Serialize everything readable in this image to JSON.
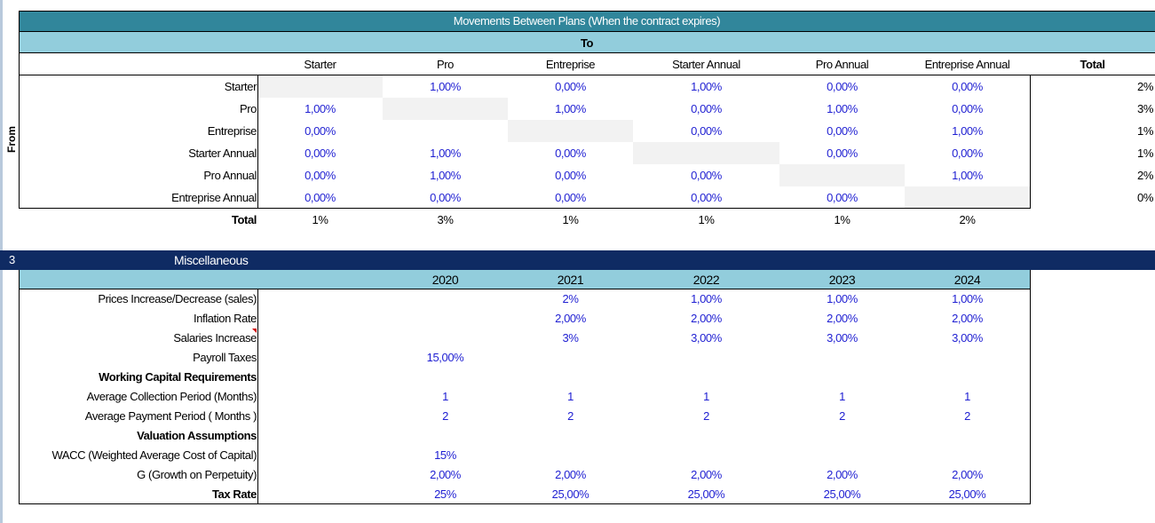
{
  "movements": {
    "title": "Movements Between Plans (When the contract expires)",
    "to_label": "To",
    "from_label": "From",
    "columns": [
      "Starter",
      "Pro",
      "Entreprise",
      "Starter Annual",
      "Pro Annual",
      "Entreprise Annual"
    ],
    "total_label": "Total",
    "rows": [
      {
        "label": "Starter",
        "values": [
          "",
          "1,00%",
          "0,00%",
          "1,00%",
          "0,00%",
          "0,00%"
        ],
        "total": "2%"
      },
      {
        "label": "Pro",
        "values": [
          "1,00%",
          "",
          "1,00%",
          "0,00%",
          "1,00%",
          "0,00%"
        ],
        "total": "3%"
      },
      {
        "label": "Entreprise",
        "values": [
          "0,00%",
          "",
          "",
          "0,00%",
          "0,00%",
          "1,00%"
        ],
        "total": "1%"
      },
      {
        "label": "Starter Annual",
        "values": [
          "0,00%",
          "1,00%",
          "0,00%",
          "",
          "0,00%",
          "0,00%"
        ],
        "total": "1%"
      },
      {
        "label": "Pro Annual",
        "values": [
          "0,00%",
          "1,00%",
          "0,00%",
          "0,00%",
          "",
          "1,00%"
        ],
        "total": "2%"
      },
      {
        "label": "Entreprise Annual",
        "values": [
          "0,00%",
          "0,00%",
          "0,00%",
          "0,00%",
          "0,00%",
          ""
        ],
        "total": "0%"
      }
    ],
    "column_totals": [
      "1%",
      "3%",
      "1%",
      "1%",
      "1%",
      "2%"
    ]
  },
  "misc": {
    "section_number": "3",
    "title": "Miscellaneous",
    "years": [
      "2020",
      "2021",
      "2022",
      "2023",
      "2024"
    ],
    "rows": [
      {
        "label": "Prices Increase/Decrease (sales)",
        "bold": false,
        "values": [
          "",
          "2%",
          "1,00%",
          "1,00%",
          "1,00%"
        ]
      },
      {
        "label": "Inflation Rate",
        "bold": false,
        "values": [
          "",
          "2,00%",
          "2,00%",
          "2,00%",
          "2,00%"
        ]
      },
      {
        "label": "Salaries Increase",
        "bold": false,
        "values": [
          "",
          "3%",
          "3,00%",
          "3,00%",
          "3,00%"
        ]
      },
      {
        "label": "Payroll Taxes",
        "bold": false,
        "values": [
          "15,00%",
          "",
          "",
          "",
          ""
        ]
      },
      {
        "label": "Working Capital Requirements",
        "bold": true,
        "values": [
          "",
          "",
          "",
          "",
          ""
        ]
      },
      {
        "label": "Average Collection Period (Months)",
        "bold": false,
        "values": [
          "1",
          "1",
          "1",
          "1",
          "1"
        ]
      },
      {
        "label": "Average Payment Period ( Months )",
        "bold": false,
        "values": [
          "2",
          "2",
          "2",
          "2",
          "2"
        ]
      },
      {
        "label": "Valuation Assumptions",
        "bold": true,
        "values": [
          "",
          "",
          "",
          "",
          ""
        ]
      },
      {
        "label": "WACC (Weighted Average Cost of Capital)",
        "bold": false,
        "values": [
          "15%",
          "",
          "",
          "",
          ""
        ]
      },
      {
        "label": "G (Growth on Perpetuity)",
        "bold": false,
        "values": [
          "2,00%",
          "2,00%",
          "2,00%",
          "2,00%",
          "2,00%"
        ]
      },
      {
        "label": "Tax Rate",
        "bold": true,
        "values": [
          "25%",
          "25,00%",
          "25,00%",
          "25,00%",
          "25,00%"
        ]
      }
    ]
  },
  "colors": {
    "title_band": "#31869b",
    "header_band": "#92cddc",
    "section_band": "#0f2b63",
    "input_blue": "#1f1fd2",
    "diagonal_grey": "#f2f2f2"
  }
}
